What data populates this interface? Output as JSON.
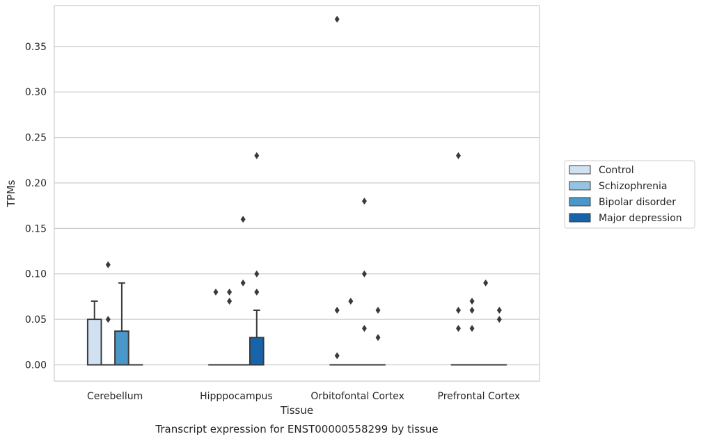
{
  "chart_data": {
    "type": "box",
    "title": "Transcript expression for ENST00000558299 by tissue",
    "xlabel": "Tissue",
    "ylabel": "TPMs",
    "ylim": [
      -0.018,
      0.395
    ],
    "yticks": [
      0.0,
      0.05,
      0.1,
      0.15,
      0.2,
      0.25,
      0.3,
      0.35
    ],
    "ytick_labels": [
      "0.00",
      "0.05",
      "0.10",
      "0.15",
      "0.20",
      "0.25",
      "0.30",
      "0.35"
    ],
    "grid": true,
    "legend_position": "right",
    "categories": [
      "Cerebellum",
      "Hipppocampus",
      "Orbitofontal Cortex",
      "Prefrontal Cortex"
    ],
    "series": [
      {
        "name": "Control",
        "color": "#d0e1f2",
        "boxes": [
          {
            "q1": 0.0,
            "median": 0.0,
            "q3": 0.05,
            "whisker_low": 0.0,
            "whisker_high": 0.07,
            "outliers": []
          },
          {
            "q1": 0.0,
            "median": 0.0,
            "q3": 0.0,
            "whisker_low": 0.0,
            "whisker_high": 0.0,
            "outliers": [
              0.08
            ]
          },
          {
            "q1": 0.0,
            "median": 0.0,
            "q3": 0.0,
            "whisker_low": 0.0,
            "whisker_high": 0.0,
            "outliers": [
              0.38,
              0.06,
              0.01
            ]
          },
          {
            "q1": 0.0,
            "median": 0.0,
            "q3": 0.0,
            "whisker_low": 0.0,
            "whisker_high": 0.0,
            "outliers": [
              0.23,
              0.06,
              0.04
            ]
          }
        ]
      },
      {
        "name": "Schizophrenia",
        "color": "#94c4df",
        "boxes": [
          {
            "q1": 0.0,
            "median": 0.0,
            "q3": 0.0,
            "whisker_low": 0.0,
            "whisker_high": 0.0,
            "outliers": [
              0.11,
              0.05
            ]
          },
          {
            "q1": 0.0,
            "median": 0.0,
            "q3": 0.0,
            "whisker_low": 0.0,
            "whisker_high": 0.0,
            "outliers": [
              0.08,
              0.07
            ]
          },
          {
            "q1": 0.0,
            "median": 0.0,
            "q3": 0.0,
            "whisker_low": 0.0,
            "whisker_high": 0.0,
            "outliers": [
              0.07
            ]
          },
          {
            "q1": 0.0,
            "median": 0.0,
            "q3": 0.0,
            "whisker_low": 0.0,
            "whisker_high": 0.0,
            "outliers": [
              0.07,
              0.06,
              0.04
            ]
          }
        ]
      },
      {
        "name": "Bipolar disorder",
        "color": "#4a98c9",
        "boxes": [
          {
            "q1": 0.0,
            "median": 0.0,
            "q3": 0.037,
            "whisker_low": 0.0,
            "whisker_high": 0.09,
            "outliers": []
          },
          {
            "q1": 0.0,
            "median": 0.0,
            "q3": 0.0,
            "whisker_low": 0.0,
            "whisker_high": 0.0,
            "outliers": [
              0.16,
              0.09
            ]
          },
          {
            "q1": 0.0,
            "median": 0.0,
            "q3": 0.0,
            "whisker_low": 0.0,
            "whisker_high": 0.0,
            "outliers": [
              0.18,
              0.1,
              0.04
            ]
          },
          {
            "q1": 0.0,
            "median": 0.0,
            "q3": 0.0,
            "whisker_low": 0.0,
            "whisker_high": 0.0,
            "outliers": [
              0.09
            ]
          }
        ]
      },
      {
        "name": "Major depression",
        "color": "#1764ab",
        "boxes": [
          {
            "q1": 0.0,
            "median": 0.0,
            "q3": 0.0,
            "whisker_low": 0.0,
            "whisker_high": 0.0,
            "outliers": []
          },
          {
            "q1": 0.0,
            "median": 0.0,
            "q3": 0.03,
            "whisker_low": 0.0,
            "whisker_high": 0.06,
            "outliers": [
              0.23,
              0.1,
              0.08
            ]
          },
          {
            "q1": 0.0,
            "median": 0.0,
            "q3": 0.0,
            "whisker_low": 0.0,
            "whisker_high": 0.0,
            "outliers": [
              0.06,
              0.03
            ]
          },
          {
            "q1": 0.0,
            "median": 0.0,
            "q3": 0.0,
            "whisker_low": 0.0,
            "whisker_high": 0.0,
            "outliers": [
              0.06,
              0.05
            ]
          }
        ]
      }
    ]
  }
}
